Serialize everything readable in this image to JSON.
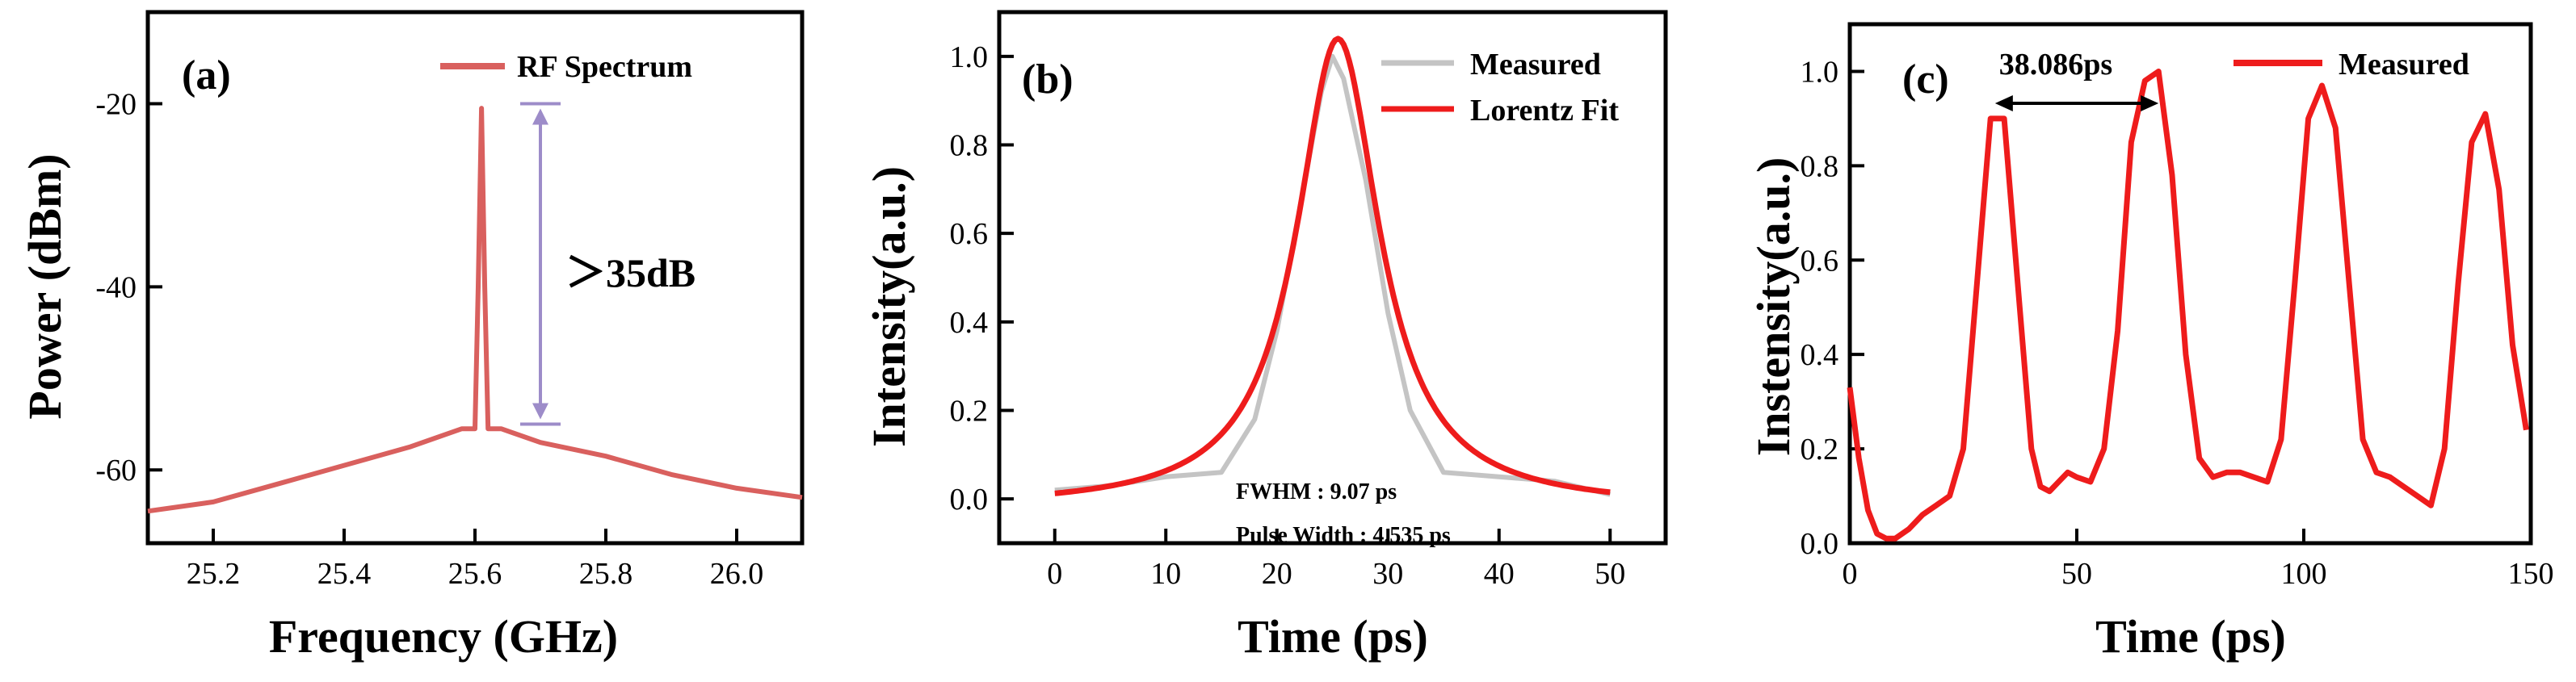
{
  "figure": {
    "colors": {
      "rf": "#d9605e",
      "red": "#ee1c1c",
      "gray": "#c4c4c4",
      "arrow": "#9d8cc9",
      "black": "#000000"
    }
  },
  "chart_data": [
    {
      "panel": "(a)",
      "type": "line",
      "title": "",
      "xlabel": "Frequency (GHz)",
      "ylabel": "Power (dBm)",
      "xlim": [
        25.1,
        26.1
      ],
      "ylim": [
        -68,
        -10
      ],
      "xticks": [
        25.2,
        25.4,
        25.6,
        25.8,
        26.0
      ],
      "xtick_labels": [
        "25.2",
        "25.4",
        "25.6",
        "25.8",
        "26.0"
      ],
      "yticks": [
        -20,
        -40,
        -60
      ],
      "ytick_labels": [
        "-20",
        "-40",
        "-60"
      ],
      "legend": {
        "position": "top-right",
        "entries": [
          "RF Spectrum"
        ]
      },
      "series": [
        {
          "name": "RF Spectrum",
          "x": [
            25.1,
            25.2,
            25.3,
            25.4,
            25.5,
            25.58,
            25.6,
            25.605,
            25.61,
            25.615,
            25.62,
            25.64,
            25.7,
            25.8,
            25.9,
            26.0,
            26.1
          ],
          "y": [
            -64.5,
            -63.5,
            -61.5,
            -59.5,
            -57.5,
            -55.5,
            -55.5,
            -40,
            -20.5,
            -40,
            -55.5,
            -55.5,
            -57,
            -58.5,
            -60.5,
            -62,
            -63
          ]
        }
      ],
      "annotations": {
        "ratio_text": "＞35dB",
        "arrow_from_y": -20,
        "arrow_to_y": -55
      }
    },
    {
      "panel": "(b)",
      "type": "line",
      "title": "",
      "xlabel": "Time (ps)",
      "ylabel": "Intensity(a.u.)",
      "xlim": [
        -5,
        55
      ],
      "ylim": [
        -0.1,
        1.1
      ],
      "xticks": [
        0,
        10,
        20,
        30,
        40,
        50
      ],
      "xtick_labels": [
        "0",
        "10",
        "20",
        "30",
        "40",
        "50"
      ],
      "yticks": [
        0.0,
        0.2,
        0.4,
        0.6,
        0.8,
        1.0
      ],
      "ytick_labels": [
        "0.0",
        "0.2",
        "0.4",
        "0.6",
        "0.8",
        "1.0"
      ],
      "legend": {
        "position": "top-right",
        "entries": [
          "Measured",
          "Lorentz Fit"
        ]
      },
      "series": [
        {
          "name": "Measured",
          "x": [
            0,
            5,
            10,
            15,
            18,
            20,
            22,
            24,
            25,
            26,
            28,
            30,
            32,
            35,
            40,
            45,
            50
          ],
          "y": [
            0.02,
            0.03,
            0.05,
            0.06,
            0.18,
            0.38,
            0.65,
            0.92,
            1.0,
            0.95,
            0.72,
            0.42,
            0.2,
            0.06,
            0.05,
            0.04,
            0.01
          ]
        },
        {
          "name": "Lorentz Fit",
          "lorentz": {
            "amplitude": 1.06,
            "center": 25.5,
            "fwhm": 9.07,
            "offset": -0.02
          },
          "x_range": [
            0,
            50
          ]
        }
      ],
      "annotations": {
        "fwhm_text": "FWHM : 9.07 ps",
        "pulse_text": "Pulse Width : 4.535 ps"
      }
    },
    {
      "panel": "(c)",
      "type": "line",
      "title": "",
      "xlabel": "Time (ps)",
      "ylabel": "Instensity(a.u.)",
      "xlim": [
        0,
        150
      ],
      "ylim": [
        0.0,
        1.1
      ],
      "xticks": [
        0,
        50,
        100,
        150
      ],
      "xtick_labels": [
        "0",
        "50",
        "100",
        "150"
      ],
      "yticks": [
        0.0,
        0.2,
        0.4,
        0.6,
        0.8,
        1.0
      ],
      "ytick_labels": [
        "0.0",
        "0.2",
        "0.4",
        "0.6",
        "0.8",
        "1.0"
      ],
      "legend": {
        "position": "top-right",
        "entries": [
          "Measured"
        ]
      },
      "series": [
        {
          "name": "Measured",
          "x": [
            0,
            2,
            4,
            6,
            8,
            10,
            13,
            16,
            19,
            22,
            25,
            28,
            31,
            34,
            37,
            40,
            42,
            44,
            46,
            48,
            50,
            53,
            56,
            59,
            62,
            65,
            68,
            71,
            74,
            77,
            80,
            83,
            86,
            89,
            92,
            95,
            98,
            101,
            104,
            107,
            110,
            113,
            116,
            119,
            122,
            125,
            128,
            131,
            134,
            137,
            140,
            143,
            146,
            149
          ],
          "y": [
            0.33,
            0.18,
            0.07,
            0.02,
            0.01,
            0.01,
            0.03,
            0.06,
            0.08,
            0.1,
            0.2,
            0.55,
            0.9,
            0.9,
            0.55,
            0.2,
            0.12,
            0.11,
            0.13,
            0.15,
            0.14,
            0.13,
            0.2,
            0.45,
            0.85,
            0.98,
            1.0,
            0.78,
            0.4,
            0.18,
            0.14,
            0.15,
            0.15,
            0.14,
            0.13,
            0.22,
            0.55,
            0.9,
            0.97,
            0.88,
            0.55,
            0.22,
            0.15,
            0.14,
            0.12,
            0.1,
            0.08,
            0.2,
            0.55,
            0.85,
            0.91,
            0.75,
            0.42,
            0.24
          ]
        }
      ],
      "annotations": {
        "period_text": "38.086ps",
        "arrow_from_x": 32,
        "arrow_to_x": 68
      }
    }
  ]
}
